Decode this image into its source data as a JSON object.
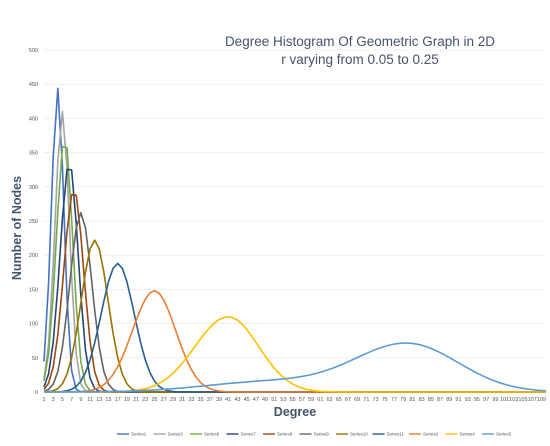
{
  "chart_data": {
    "type": "line",
    "title_line1": "Degree Histogram Of Geometric Graph in 2D",
    "title_line2": "r varying from 0.05 to 0.25",
    "xlabel": "Degree",
    "ylabel": "Number of Nodes",
    "ylim": [
      0,
      500
    ],
    "yticks": [
      0,
      50,
      100,
      150,
      200,
      250,
      300,
      350,
      400,
      450,
      500
    ],
    "xlim": [
      1,
      110
    ],
    "xticks": [
      1,
      3,
      5,
      7,
      9,
      11,
      13,
      15,
      17,
      19,
      21,
      23,
      25,
      27,
      29,
      31,
      33,
      35,
      37,
      39,
      41,
      43,
      45,
      47,
      49,
      51,
      53,
      55,
      57,
      59,
      61,
      63,
      65,
      67,
      69,
      71,
      73,
      75,
      77,
      79,
      81,
      83,
      85,
      87,
      89,
      91,
      93,
      95,
      97,
      99,
      101,
      103,
      105,
      107,
      109
    ],
    "grid": true,
    "legend_position": "bottom",
    "series": [
      {
        "name": "Series1",
        "color": "#4472c4",
        "peak_x": 4,
        "peak_y": 444,
        "sigma_left": 1.4,
        "sigma_right": 1.3
      },
      {
        "name": "Series3",
        "color": "#a5a5a5",
        "peak_x": 5,
        "peak_y": 410,
        "sigma_left": 1.6,
        "sigma_right": 1.5
      },
      {
        "name": "Series6",
        "color": "#70ad47",
        "peak_x": 5.5,
        "peak_y": 373,
        "sigma_left": 1.8,
        "sigma_right": 1.7
      },
      {
        "name": "Series7",
        "color": "#264478",
        "peak_x": 6.5,
        "peak_y": 336,
        "sigma_left": 2.0,
        "sigma_right": 1.9
      },
      {
        "name": "Series8",
        "color": "#9e480e",
        "peak_x": 7.5,
        "peak_y": 296,
        "sigma_left": 2.2,
        "sigma_right": 2.1
      },
      {
        "name": "Series9",
        "color": "#636363",
        "peak_x": 9,
        "peak_y": 262,
        "sigma_left": 2.4,
        "sigma_right": 2.4
      },
      {
        "name": "Series10",
        "color": "#997300",
        "peak_x": 12,
        "peak_y": 222,
        "sigma_left": 2.9,
        "sigma_right": 2.9
      },
      {
        "name": "Series11",
        "color": "#255e91",
        "peak_x": 17,
        "peak_y": 188,
        "sigma_left": 3.6,
        "sigma_right": 3.6
      },
      {
        "name": "Series2",
        "color": "#ed7d31",
        "peak_x": 25,
        "peak_y": 148,
        "sigma_left": 4.8,
        "sigma_right": 4.6
      },
      {
        "name": "Series4",
        "color": "#ffc000",
        "peak_x": 41,
        "peak_y": 110,
        "sigma_left": 7.2,
        "sigma_right": 6.6
      },
      {
        "name": "Series5",
        "color": "#5b9bd5",
        "peak_x": 80,
        "peak_y": 70,
        "sigma_left": 11.5,
        "sigma_right": 11.0,
        "tail_bump_y": 15,
        "tail_bump_x": 50,
        "tail_bump_sigma": 14
      }
    ]
  }
}
